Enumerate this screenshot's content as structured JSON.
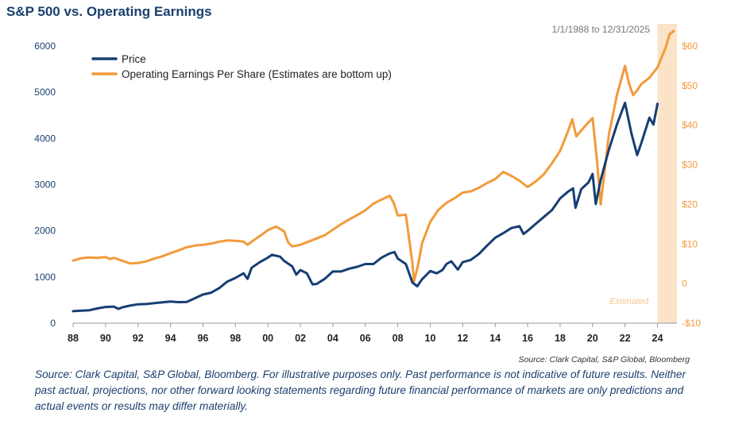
{
  "title": "S&P 500 vs. Operating Earnings",
  "date_range": "1/1/1988 to 12/31/2025",
  "estimated_label": "Estimated",
  "chart_source": "Source: Clark Capital, S&P Global, Bloomberg",
  "footer_text": "Source: Clark Capital, S&P Global, Bloomberg. For illustrative purposes only. Past performance is not indicative of future results. Neither past actual, projections, nor other forward looking statements regarding future financial performance of markets are only predictions and actual events or results may differ materially.",
  "colors": {
    "price": "#163e73",
    "eps": "#f29a3a",
    "estimated_band": "#fbe3c8",
    "title": "#1a3f6e"
  },
  "chart_data": {
    "type": "line",
    "legend": {
      "position": "top-left",
      "entries": [
        "Price",
        "Operating Earnings Per Share (Estimates are bottom up)"
      ]
    },
    "x_ticks": [
      "88",
      "90",
      "92",
      "94",
      "96",
      "98",
      "00",
      "02",
      "04",
      "06",
      "08",
      "10",
      "12",
      "14",
      "16",
      "18",
      "20",
      "22",
      "24"
    ],
    "x_tick_values": [
      1988,
      1990,
      1992,
      1994,
      1996,
      1998,
      2000,
      2002,
      2004,
      2006,
      2008,
      2010,
      2012,
      2014,
      2016,
      2018,
      2020,
      2022,
      2024
    ],
    "xlim": [
      1988,
      2025.2
    ],
    "left_axis": {
      "ticks": [
        "0",
        "1000",
        "2000",
        "3000",
        "4000",
        "5000",
        "6000"
      ],
      "tick_values": [
        0,
        1000,
        2000,
        3000,
        4000,
        5000,
        6000
      ],
      "ylim": [
        0,
        6000
      ]
    },
    "right_axis": {
      "ticks": [
        "-$10",
        "0",
        "$10",
        "$20",
        "$30",
        "$40",
        "$50",
        "$60"
      ],
      "tick_values": [
        -10,
        0,
        10,
        20,
        30,
        40,
        50,
        60
      ],
      "ylim": [
        -10,
        60
      ]
    },
    "estimated_range": [
      2024.0,
      2025.2
    ],
    "series": [
      {
        "name": "Price",
        "axis": "left",
        "color": "#163e73",
        "points": [
          [
            1988.0,
            260
          ],
          [
            1988.5,
            270
          ],
          [
            1989.0,
            280
          ],
          [
            1989.5,
            320
          ],
          [
            1990.0,
            350
          ],
          [
            1990.5,
            360
          ],
          [
            1990.8,
            310
          ],
          [
            1991.0,
            340
          ],
          [
            1991.5,
            380
          ],
          [
            1992.0,
            410
          ],
          [
            1992.5,
            415
          ],
          [
            1993.0,
            435
          ],
          [
            1993.5,
            450
          ],
          [
            1994.0,
            470
          ],
          [
            1994.5,
            455
          ],
          [
            1995.0,
            460
          ],
          [
            1995.5,
            540
          ],
          [
            1996.0,
            620
          ],
          [
            1996.5,
            660
          ],
          [
            1997.0,
            760
          ],
          [
            1997.5,
            900
          ],
          [
            1998.0,
            980
          ],
          [
            1998.5,
            1080
          ],
          [
            1998.75,
            960
          ],
          [
            1999.0,
            1200
          ],
          [
            1999.5,
            1320
          ],
          [
            2000.0,
            1420
          ],
          [
            2000.25,
            1480
          ],
          [
            2000.75,
            1440
          ],
          [
            2001.0,
            1350
          ],
          [
            2001.5,
            1230
          ],
          [
            2001.75,
            1050
          ],
          [
            2002.0,
            1150
          ],
          [
            2002.4,
            1080
          ],
          [
            2002.75,
            840
          ],
          [
            2003.0,
            850
          ],
          [
            2003.5,
            960
          ],
          [
            2004.0,
            1120
          ],
          [
            2004.5,
            1120
          ],
          [
            2005.0,
            1180
          ],
          [
            2005.5,
            1220
          ],
          [
            2006.0,
            1280
          ],
          [
            2006.5,
            1280
          ],
          [
            2007.0,
            1420
          ],
          [
            2007.5,
            1510
          ],
          [
            2007.8,
            1540
          ],
          [
            2008.0,
            1400
          ],
          [
            2008.5,
            1280
          ],
          [
            2008.9,
            880
          ],
          [
            2009.2,
            800
          ],
          [
            2009.5,
            950
          ],
          [
            2010.0,
            1130
          ],
          [
            2010.4,
            1080
          ],
          [
            2010.75,
            1150
          ],
          [
            2011.0,
            1280
          ],
          [
            2011.3,
            1340
          ],
          [
            2011.7,
            1160
          ],
          [
            2012.0,
            1320
          ],
          [
            2012.5,
            1370
          ],
          [
            2013.0,
            1500
          ],
          [
            2013.5,
            1680
          ],
          [
            2014.0,
            1850
          ],
          [
            2014.5,
            1950
          ],
          [
            2015.0,
            2060
          ],
          [
            2015.5,
            2100
          ],
          [
            2015.75,
            1930
          ],
          [
            2016.0,
            2000
          ],
          [
            2016.5,
            2150
          ],
          [
            2017.0,
            2300
          ],
          [
            2017.5,
            2450
          ],
          [
            2018.0,
            2700
          ],
          [
            2018.5,
            2850
          ],
          [
            2018.8,
            2920
          ],
          [
            2018.95,
            2500
          ],
          [
            2019.3,
            2900
          ],
          [
            2019.75,
            3050
          ],
          [
            2020.0,
            3230
          ],
          [
            2020.2,
            2580
          ],
          [
            2020.5,
            3100
          ],
          [
            2021.0,
            3750
          ],
          [
            2021.5,
            4300
          ],
          [
            2022.0,
            4770
          ],
          [
            2022.4,
            4100
          ],
          [
            2022.75,
            3640
          ],
          [
            2023.0,
            3900
          ],
          [
            2023.5,
            4450
          ],
          [
            2023.75,
            4300
          ],
          [
            2024.0,
            4750
          ]
        ]
      },
      {
        "name": "Operating Earnings Per Share (Estimates are bottom up)",
        "axis": "right",
        "color": "#f29a3a",
        "points": [
          [
            1988.0,
            5.8
          ],
          [
            1988.5,
            6.4
          ],
          [
            1989.0,
            6.6
          ],
          [
            1989.5,
            6.5
          ],
          [
            1990.0,
            6.7
          ],
          [
            1990.25,
            6.2
          ],
          [
            1990.5,
            6.5
          ],
          [
            1991.0,
            5.8
          ],
          [
            1991.5,
            5.1
          ],
          [
            1992.0,
            5.2
          ],
          [
            1992.5,
            5.6
          ],
          [
            1993.0,
            6.3
          ],
          [
            1993.5,
            6.9
          ],
          [
            1994.0,
            7.7
          ],
          [
            1994.5,
            8.4
          ],
          [
            1995.0,
            9.2
          ],
          [
            1995.5,
            9.6
          ],
          [
            1996.0,
            9.8
          ],
          [
            1996.5,
            10.1
          ],
          [
            1997.0,
            10.6
          ],
          [
            1997.5,
            10.9
          ],
          [
            1998.0,
            10.8
          ],
          [
            1998.5,
            10.6
          ],
          [
            1998.75,
            9.8
          ],
          [
            1999.0,
            10.6
          ],
          [
            1999.5,
            12.0
          ],
          [
            2000.0,
            13.5
          ],
          [
            2000.5,
            14.4
          ],
          [
            2001.0,
            13.2
          ],
          [
            2001.25,
            10.4
          ],
          [
            2001.5,
            9.4
          ],
          [
            2002.0,
            9.8
          ],
          [
            2002.5,
            10.6
          ],
          [
            2003.0,
            11.4
          ],
          [
            2003.5,
            12.2
          ],
          [
            2004.0,
            13.6
          ],
          [
            2004.5,
            15.0
          ],
          [
            2005.0,
            16.2
          ],
          [
            2005.5,
            17.3
          ],
          [
            2006.0,
            18.5
          ],
          [
            2006.5,
            20.2
          ],
          [
            2007.0,
            21.2
          ],
          [
            2007.5,
            22.2
          ],
          [
            2007.75,
            20.4
          ],
          [
            2008.0,
            17.2
          ],
          [
            2008.5,
            17.4
          ],
          [
            2008.9,
            5.2
          ],
          [
            2009.0,
            0.5
          ],
          [
            2009.25,
            4.6
          ],
          [
            2009.5,
            10.2
          ],
          [
            2010.0,
            15.6
          ],
          [
            2010.5,
            18.6
          ],
          [
            2011.0,
            20.4
          ],
          [
            2011.5,
            21.6
          ],
          [
            2012.0,
            23.0
          ],
          [
            2012.5,
            23.3
          ],
          [
            2013.0,
            24.2
          ],
          [
            2013.5,
            25.4
          ],
          [
            2014.0,
            26.4
          ],
          [
            2014.5,
            28.2
          ],
          [
            2015.0,
            27.2
          ],
          [
            2015.5,
            26.0
          ],
          [
            2016.0,
            24.4
          ],
          [
            2016.5,
            25.8
          ],
          [
            2017.0,
            27.6
          ],
          [
            2017.5,
            30.4
          ],
          [
            2018.0,
            33.5
          ],
          [
            2018.5,
            38.6
          ],
          [
            2018.75,
            41.5
          ],
          [
            2019.0,
            37.2
          ],
          [
            2019.5,
            39.6
          ],
          [
            2020.0,
            41.8
          ],
          [
            2020.25,
            32.0
          ],
          [
            2020.5,
            20.0
          ],
          [
            2021.0,
            37.5
          ],
          [
            2021.5,
            47.6
          ],
          [
            2022.0,
            55.0
          ],
          [
            2022.25,
            50.5
          ],
          [
            2022.5,
            47.6
          ],
          [
            2022.75,
            48.8
          ],
          [
            2023.0,
            50.4
          ],
          [
            2023.5,
            52.0
          ],
          [
            2024.0,
            54.6
          ],
          [
            2024.5,
            59.6
          ],
          [
            2024.75,
            63.0
          ],
          [
            2025.0,
            63.8
          ]
        ]
      }
    ]
  }
}
